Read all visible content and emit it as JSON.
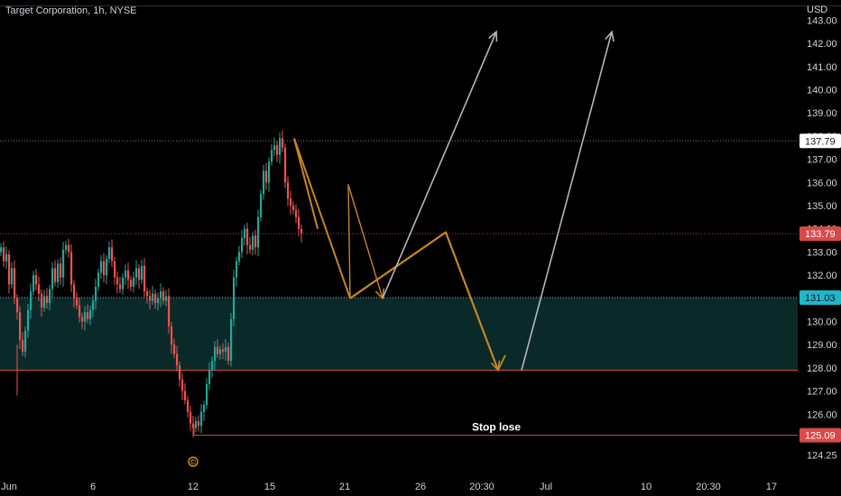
{
  "header": {
    "title": "Target Corporation, 1h, NYSE"
  },
  "chart_data": {
    "type": "candlestick",
    "currency": "USD",
    "y_range": [
      124.25,
      143.0
    ],
    "y_ticks": [
      143.0,
      142.0,
      141.0,
      140.0,
      139.0,
      138.0,
      137.0,
      136.0,
      135.0,
      134.0,
      133.0,
      132.0,
      131.0,
      130.0,
      129.0,
      128.0,
      127.0,
      126.0,
      125.0,
      124.25
    ],
    "y_tick_labels": [
      "143.00",
      "142.00",
      "141.00",
      "140.00",
      "139.00",
      "138.00",
      "137.00",
      "136.00",
      "135.00",
      "134.00",
      "133.00",
      "132.00",
      "131.00",
      "130.00",
      "129.00",
      "128.00",
      "127.00",
      "126.00",
      "125.00",
      "124.25"
    ],
    "x_labels": [
      "Jun",
      "6",
      "12",
      "15",
      "21",
      "26",
      "20:30",
      "Jul",
      "10",
      "20:30",
      "17"
    ],
    "colors": {
      "up": "#26a69a",
      "down": "#ef5350",
      "text": "#d1d4dc",
      "zone": "#0a2a2a",
      "arrow_orange": "#c58527",
      "arrow_white": "#b2b5be",
      "teal_badge": "#1fb8c9"
    },
    "closes": [
      133.2,
      132.6,
      132.9,
      131.6,
      132.3,
      131.0,
      130.4,
      129.2,
      128.7,
      129.6,
      130.5,
      131.3,
      132.0,
      131.6,
      131.2,
      130.6,
      131.1,
      130.8,
      131.4,
      132.3,
      131.7,
      132.5,
      131.9,
      133.1,
      133.3,
      133.0,
      131.6,
      131.0,
      130.7,
      130.2,
      130.0,
      130.4,
      130.1,
      130.5,
      130.9,
      131.5,
      132.1,
      132.6,
      132.0,
      132.7,
      133.2,
      132.6,
      131.9,
      131.6,
      131.4,
      131.9,
      132.2,
      131.8,
      131.5,
      131.9,
      132.3,
      131.8,
      132.4,
      131.3,
      131.1,
      130.9,
      131.2,
      130.8,
      131.0,
      131.3,
      130.9,
      131.1,
      129.8,
      129.0,
      128.6,
      128.1,
      127.5,
      127.0,
      126.6,
      126.1,
      125.6,
      125.4,
      125.7,
      125.5,
      126.1,
      126.4,
      127.3,
      127.9,
      128.3,
      128.9,
      128.6,
      128.8,
      128.7,
      128.9,
      128.3,
      130.1,
      131.9,
      132.6,
      133.0,
      133.6,
      134.0,
      133.3,
      133.1,
      133.7,
      133.2,
      134.5,
      135.5,
      136.5,
      136.0,
      136.9,
      137.4,
      137.6,
      137.2,
      137.9,
      137.5,
      136.0,
      135.3,
      135.0,
      134.8,
      134.5,
      134.0,
      133.8
    ],
    "levels": [
      {
        "price": 137.79,
        "label": "137.79"
      },
      {
        "price": 133.79,
        "label": "133.79"
      },
      {
        "price": 131.03,
        "label": "131.03"
      },
      {
        "price": 125.09,
        "label": "125.09"
      }
    ],
    "support_line_price": 127.9,
    "zone": {
      "top": 131.03,
      "bottom": 127.9
    },
    "stop_label": "Stop lose",
    "event_marker": "©",
    "orange_path_a": [
      [
        326,
        137.9
      ],
      [
        388,
        131.0
      ],
      [
        386,
        135.9
      ],
      [
        424,
        131.0
      ]
    ],
    "orange_path_b": [
      [
        326,
        137.9
      ],
      [
        352,
        134.0
      ]
    ],
    "orange_path_c": [
      [
        388,
        131.0
      ],
      [
        494,
        133.85
      ],
      [
        552,
        127.9
      ]
    ],
    "white_arrows": [
      [
        [
          424,
          131.0
        ],
        [
          550,
          142.5
        ]
      ],
      [
        [
          578,
          127.9
        ],
        [
          678,
          142.5
        ]
      ]
    ]
  }
}
